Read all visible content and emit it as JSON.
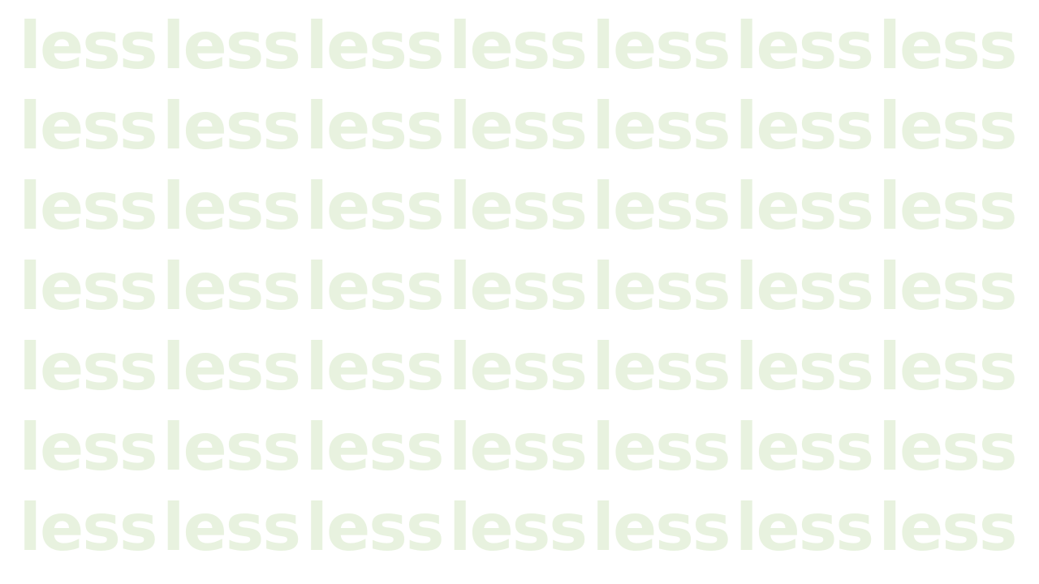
{
  "pattern": {
    "word": "less",
    "rows": 7,
    "columns": 7,
    "text_color": "#e8f2df",
    "background_color": "#ffffff"
  }
}
